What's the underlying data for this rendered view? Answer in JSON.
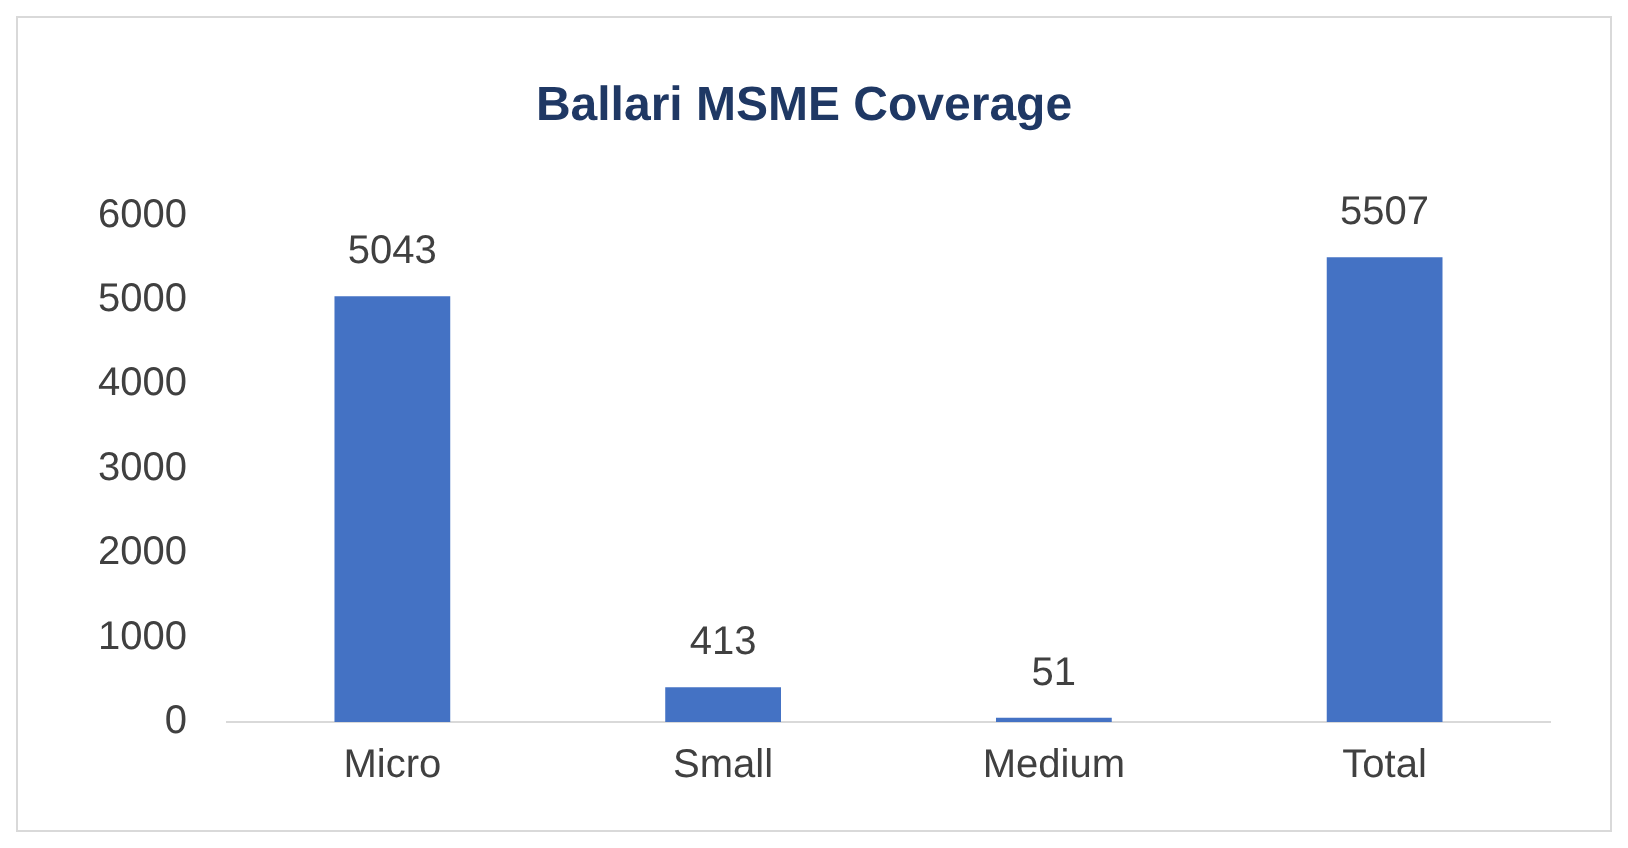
{
  "chart_data": {
    "type": "bar",
    "title": "Ballari MSME Coverage",
    "categories": [
      "Micro",
      "Small",
      "Medium",
      "Total"
    ],
    "values": [
      5043,
      413,
      51,
      5507
    ],
    "color": "#4472c4",
    "ylim": [
      0,
      6000
    ],
    "yticks": [
      0,
      1000,
      2000,
      3000,
      4000,
      5000,
      6000
    ],
    "grid": false,
    "data_labels": true
  }
}
